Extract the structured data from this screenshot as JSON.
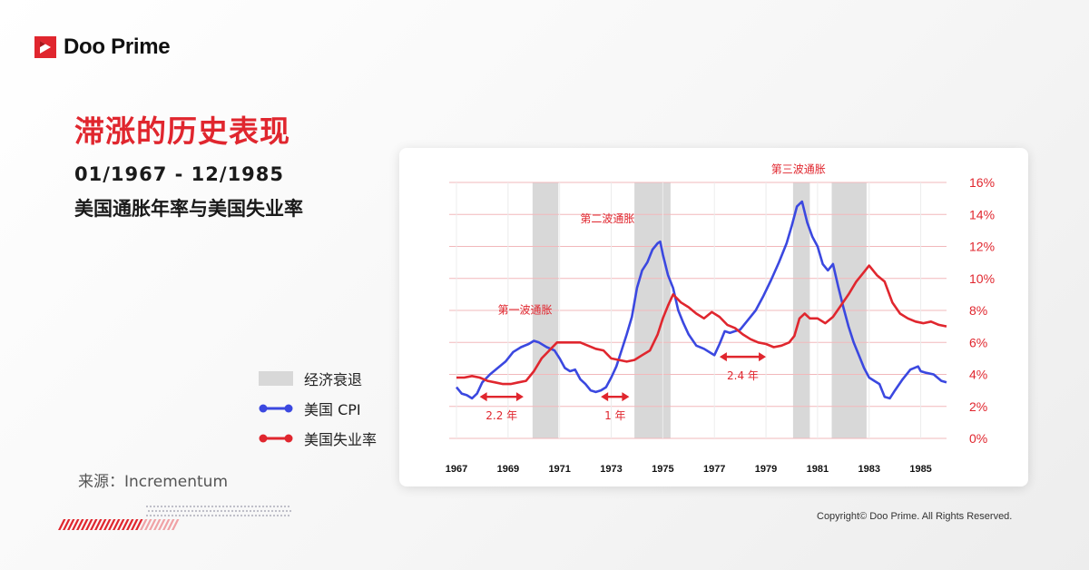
{
  "brand": {
    "name": "Doo Prime",
    "color": "#e0262e"
  },
  "title": "滞涨的历史表现",
  "subtitle_line1": "01/1967 - 12/1985",
  "subtitle_line2": "美国通胀年率与美国失业率",
  "source": "来源：Incrementum",
  "copyright": "Copyright© Doo Prime. All Rights Reserved.",
  "legend": [
    {
      "label": "经济衰退",
      "color": "#d8d8d8",
      "kind": "box"
    },
    {
      "label": "美国 CPI",
      "color": "#3b48e0",
      "kind": "line"
    },
    {
      "label": "美国失业率",
      "color": "#e0262e",
      "kind": "line"
    }
  ],
  "chart_data": {
    "type": "line",
    "x_ticks": [
      "1967",
      "1969",
      "1971",
      "1973",
      "1975",
      "1977",
      "1979",
      "1981",
      "1983",
      "1985"
    ],
    "y_ticks": [
      "0%",
      "2%",
      "4%",
      "6%",
      "8%",
      "10%",
      "12%",
      "14%",
      "16%"
    ],
    "xlim": [
      1967,
      1986
    ],
    "ylim": [
      0,
      16
    ],
    "recessions": [
      {
        "start": 1969.95,
        "end": 1970.95
      },
      {
        "start": 1973.9,
        "end": 1975.3
      },
      {
        "start": 1980.05,
        "end": 1980.7
      },
      {
        "start": 1981.55,
        "end": 1982.9
      }
    ],
    "series": [
      {
        "name": "美国 CPI",
        "color": "#3b48e0",
        "x": [
          1967.0,
          1967.2,
          1967.4,
          1967.6,
          1967.8,
          1968.0,
          1968.3,
          1968.6,
          1968.9,
          1969.2,
          1969.5,
          1969.8,
          1970.0,
          1970.2,
          1970.5,
          1970.8,
          1971.0,
          1971.2,
          1971.4,
          1971.6,
          1971.8,
          1972.0,
          1972.2,
          1972.4,
          1972.6,
          1972.8,
          1973.0,
          1973.2,
          1973.4,
          1973.6,
          1973.8,
          1974.0,
          1974.2,
          1974.4,
          1974.6,
          1974.8,
          1974.9,
          1975.0,
          1975.2,
          1975.4,
          1975.6,
          1975.8,
          1976.0,
          1976.3,
          1976.6,
          1976.9,
          1977.0,
          1977.2,
          1977.4,
          1977.6,
          1977.8,
          1978.0,
          1978.3,
          1978.6,
          1978.9,
          1979.2,
          1979.5,
          1979.8,
          1980.0,
          1980.2,
          1980.4,
          1980.6,
          1980.8,
          1981.0,
          1981.2,
          1981.4,
          1981.6,
          1981.8,
          1982.0,
          1982.2,
          1982.4,
          1982.6,
          1982.8,
          1983.0,
          1983.2,
          1983.4,
          1983.6,
          1983.8,
          1984.0,
          1984.3,
          1984.6,
          1984.9,
          1985.0,
          1985.2,
          1985.5,
          1985.8,
          1986.0
        ],
        "y": [
          3.2,
          2.8,
          2.7,
          2.5,
          2.8,
          3.5,
          4.0,
          4.4,
          4.8,
          5.4,
          5.7,
          5.9,
          6.1,
          6.0,
          5.7,
          5.5,
          5.0,
          4.4,
          4.2,
          4.3,
          3.7,
          3.4,
          3.0,
          2.9,
          3.0,
          3.2,
          3.8,
          4.5,
          5.5,
          6.5,
          7.6,
          9.4,
          10.5,
          11.0,
          11.8,
          12.2,
          12.3,
          11.5,
          10.2,
          9.4,
          8.0,
          7.2,
          6.5,
          5.8,
          5.6,
          5.3,
          5.2,
          5.9,
          6.7,
          6.6,
          6.7,
          6.8,
          7.4,
          8.0,
          8.9,
          9.9,
          11.0,
          12.2,
          13.3,
          14.5,
          14.8,
          13.5,
          12.6,
          12.0,
          10.9,
          10.5,
          10.9,
          9.5,
          8.2,
          7.0,
          6.0,
          5.2,
          4.4,
          3.8,
          3.6,
          3.4,
          2.6,
          2.5,
          3.0,
          3.7,
          4.3,
          4.5,
          4.2,
          4.1,
          4.0,
          3.6,
          3.5
        ]
      },
      {
        "name": "美国失业率",
        "color": "#e0262e",
        "x": [
          1967.0,
          1967.3,
          1967.6,
          1967.9,
          1968.2,
          1968.5,
          1968.8,
          1969.1,
          1969.4,
          1969.7,
          1970.0,
          1970.3,
          1970.6,
          1970.9,
          1971.2,
          1971.5,
          1971.8,
          1972.1,
          1972.4,
          1972.7,
          1973.0,
          1973.3,
          1973.6,
          1973.9,
          1974.2,
          1974.5,
          1974.8,
          1975.0,
          1975.2,
          1975.4,
          1975.7,
          1976.0,
          1976.3,
          1976.6,
          1976.9,
          1977.2,
          1977.5,
          1977.8,
          1978.1,
          1978.4,
          1978.7,
          1979.0,
          1979.3,
          1979.6,
          1979.9,
          1980.1,
          1980.3,
          1980.5,
          1980.7,
          1981.0,
          1981.3,
          1981.6,
          1981.9,
          1982.2,
          1982.5,
          1982.8,
          1983.0,
          1983.3,
          1983.6,
          1983.9,
          1984.2,
          1984.5,
          1984.8,
          1985.1,
          1985.4,
          1985.7,
          1986.0
        ],
        "y": [
          3.8,
          3.8,
          3.9,
          3.8,
          3.6,
          3.5,
          3.4,
          3.4,
          3.5,
          3.6,
          4.2,
          5.0,
          5.5,
          6.0,
          6.0,
          6.0,
          6.0,
          5.8,
          5.6,
          5.5,
          5.0,
          4.9,
          4.8,
          4.9,
          5.2,
          5.5,
          6.5,
          7.5,
          8.3,
          9.0,
          8.5,
          8.2,
          7.8,
          7.5,
          7.9,
          7.6,
          7.1,
          6.9,
          6.5,
          6.2,
          6.0,
          5.9,
          5.7,
          5.8,
          6.0,
          6.4,
          7.5,
          7.8,
          7.5,
          7.5,
          7.2,
          7.6,
          8.3,
          9.0,
          9.8,
          10.4,
          10.8,
          10.2,
          9.8,
          8.5,
          7.8,
          7.5,
          7.3,
          7.2,
          7.3,
          7.1,
          7.0
        ]
      }
    ],
    "annotations": [
      {
        "text": "第一波通胀",
        "x": 1968.6,
        "y": 7.8
      },
      {
        "text": "第二波通胀",
        "x": 1971.8,
        "y": 13.5
      },
      {
        "text": "第三波通胀",
        "x": 1979.2,
        "y": 16.6
      }
    ],
    "intervals": [
      {
        "label": "2.2 年",
        "start": 1967.9,
        "end": 1969.6,
        "y": 2.6
      },
      {
        "label": "1 年",
        "start": 1972.6,
        "end": 1973.7,
        "y": 2.6
      },
      {
        "label": "2.4 年",
        "start": 1977.2,
        "end": 1979.0,
        "y": 5.1
      }
    ],
    "grid": true
  }
}
